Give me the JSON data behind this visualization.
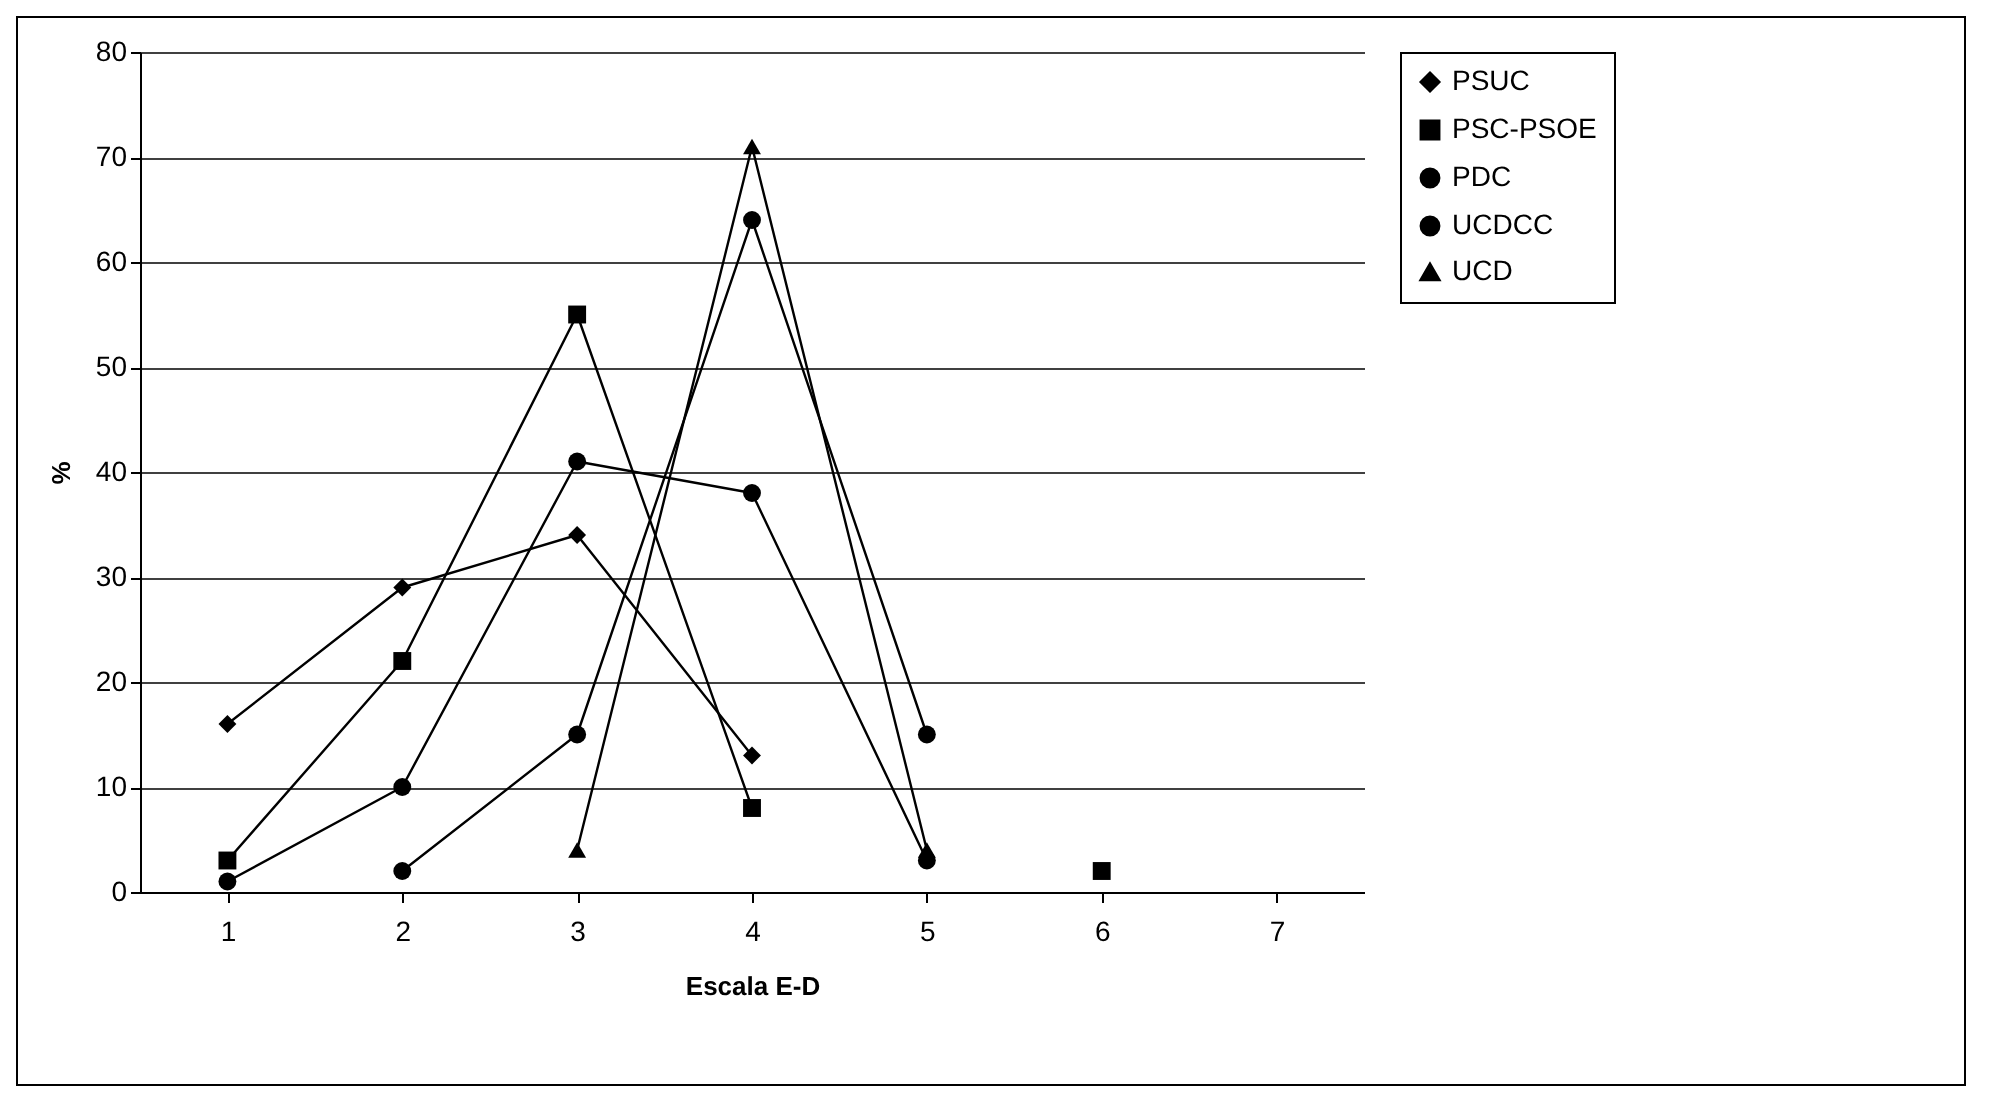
{
  "chart_data": {
    "type": "line",
    "xlabel": "Escala E-D",
    "ylabel": "%",
    "categories": [
      "1",
      "2",
      "3",
      "4",
      "5",
      "6",
      "7"
    ],
    "series": [
      {
        "name": "PSUC",
        "color": "#000000",
        "marker": "diamond",
        "values": [
          16,
          29,
          34,
          13,
          null,
          null,
          null
        ]
      },
      {
        "name": "PSC-PSOE",
        "color": "#000000",
        "marker": "square",
        "values": [
          3,
          22,
          55,
          8,
          null,
          2,
          null
        ]
      },
      {
        "name": "PDC",
        "color": "#000000",
        "marker": "circle",
        "values": [
          1,
          10,
          41,
          38,
          3,
          null,
          null
        ]
      },
      {
        "name": "UCDCC",
        "color": "#000000",
        "marker": "circle",
        "values": [
          null,
          2,
          15,
          64,
          15,
          null,
          null
        ]
      },
      {
        "name": "UCD",
        "color": "#000000",
        "marker": "triangle",
        "values": [
          null,
          null,
          4,
          71,
          4,
          null,
          null
        ]
      }
    ],
    "ylim": [
      0,
      80
    ],
    "yticks": [
      0,
      10,
      20,
      30,
      40,
      50,
      60,
      70,
      80
    ],
    "grid": "y",
    "legend": "right"
  }
}
